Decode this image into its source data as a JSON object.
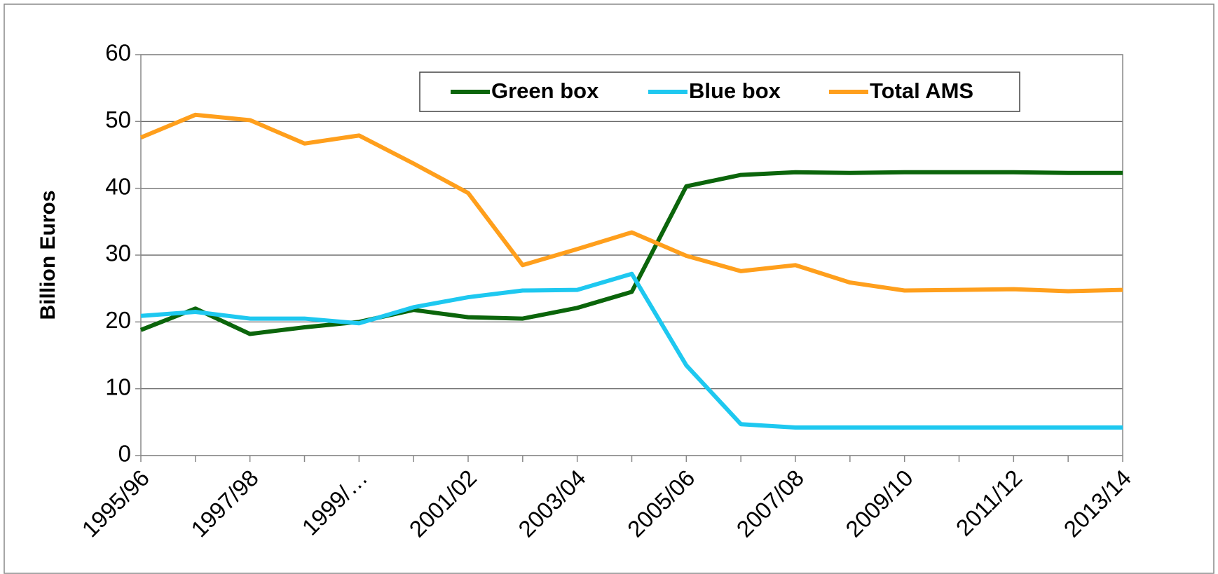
{
  "chart_data": {
    "type": "line",
    "y_label": "Billion Euros",
    "categories": [
      "1995/96",
      null,
      "1997/98",
      null,
      "1999/…",
      null,
      "2001/02",
      null,
      "2003/04",
      null,
      "2005/06",
      null,
      "2007/08",
      null,
      "2009/10",
      null,
      "2011/12",
      null,
      "2013/14"
    ],
    "series": [
      {
        "name": "Green box",
        "color": "#0b650b",
        "values": [
          18.8,
          22,
          18.2,
          19.2,
          20,
          21.8,
          20.7,
          20.5,
          22.1,
          24.5,
          40.3,
          42,
          42.4,
          42.3,
          42.4,
          42.4,
          42.4,
          42.3,
          42.3
        ]
      },
      {
        "name": "Blue box",
        "color": "#1ec8f0",
        "values": [
          20.9,
          21.5,
          20.5,
          20.5,
          19.8,
          22.2,
          23.7,
          24.7,
          24.8,
          27.2,
          13.5,
          4.7,
          4.2,
          4.2,
          4.2,
          4.2,
          4.2,
          4.2,
          4.2
        ]
      },
      {
        "name": "Total AMS",
        "color": "#ff9f1c",
        "values": [
          47.6,
          51,
          50.2,
          46.7,
          47.9,
          43.7,
          39.3,
          28.5,
          30.9,
          33.4,
          29.9,
          27.6,
          28.5,
          25.9,
          24.7,
          24.8,
          24.9,
          24.6,
          24.8
        ]
      }
    ],
    "ylim": [
      0,
      60
    ],
    "yticks": [
      0,
      10,
      20,
      30,
      40,
      50,
      60
    ],
    "grid": true,
    "legend": "top"
  }
}
